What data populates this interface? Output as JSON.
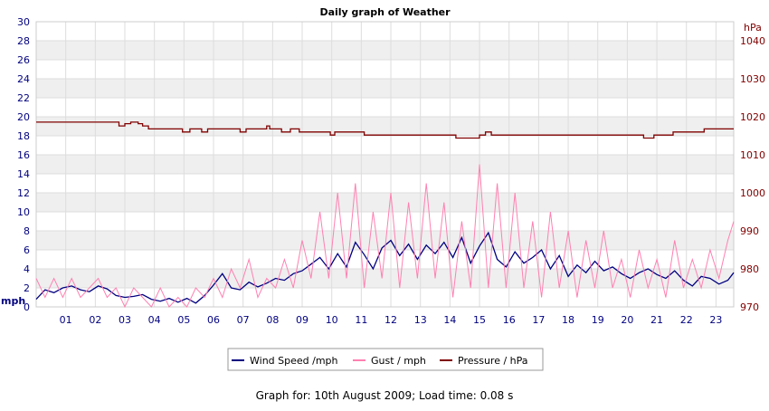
{
  "chart_data": {
    "type": "line",
    "title": "Daily graph of Weather",
    "ylabel_left": "mph",
    "ylabel_right": "hPa",
    "x_ticks": [
      "01",
      "02",
      "03",
      "04",
      "05",
      "06",
      "07",
      "08",
      "09",
      "10",
      "11",
      "12",
      "13",
      "14",
      "15",
      "16",
      "17",
      "18",
      "19",
      "20",
      "21",
      "22",
      "23"
    ],
    "xlim": [
      0,
      23.6
    ],
    "ylim_left": [
      0,
      30
    ],
    "y_ticks_left": [
      0,
      2,
      4,
      6,
      8,
      10,
      12,
      14,
      16,
      18,
      20,
      22,
      24,
      26,
      28,
      30
    ],
    "ylim_right": [
      970,
      1045
    ],
    "y_ticks_right": [
      970,
      980,
      990,
      1000,
      1010,
      1020,
      1030,
      1040
    ],
    "grid": true,
    "legend_position": "bottom",
    "series": [
      {
        "name": "Wind Speed /mph",
        "color": "#000080",
        "axis": "left",
        "x": [
          0,
          0.3,
          0.6,
          0.9,
          1.2,
          1.5,
          1.8,
          2.1,
          2.4,
          2.7,
          3.0,
          3.3,
          3.6,
          3.9,
          4.2,
          4.5,
          4.8,
          5.1,
          5.4,
          5.7,
          6.0,
          6.3,
          6.6,
          6.9,
          7.2,
          7.5,
          7.8,
          8.1,
          8.4,
          8.7,
          9.0,
          9.3,
          9.6,
          9.9,
          10.2,
          10.5,
          10.8,
          11.1,
          11.4,
          11.7,
          12.0,
          12.3,
          12.6,
          12.9,
          13.2,
          13.5,
          13.8,
          14.1,
          14.4,
          14.7,
          15.0,
          15.3,
          15.6,
          15.9,
          16.2,
          16.5,
          16.8,
          17.1,
          17.4,
          17.7,
          18.0,
          18.3,
          18.6,
          18.9,
          19.2,
          19.5,
          19.8,
          20.1,
          20.4,
          20.7,
          21.0,
          21.3,
          21.6,
          21.9,
          22.2,
          22.5,
          22.8,
          23.1,
          23.4,
          23.6
        ],
        "y": [
          0.8,
          1.8,
          1.5,
          2.0,
          2.2,
          1.8,
          1.6,
          2.2,
          1.9,
          1.2,
          1.0,
          1.1,
          1.3,
          0.8,
          0.6,
          0.9,
          0.5,
          0.9,
          0.4,
          1.2,
          2.3,
          3.5,
          2.0,
          1.8,
          2.6,
          2.1,
          2.5,
          3.0,
          2.8,
          3.5,
          3.8,
          4.5,
          5.2,
          4.0,
          5.6,
          4.2,
          6.8,
          5.5,
          4.0,
          6.2,
          7.0,
          5.4,
          6.6,
          5.0,
          6.5,
          5.6,
          6.8,
          5.2,
          7.3,
          4.6,
          6.4,
          7.8,
          5.0,
          4.2,
          5.8,
          4.6,
          5.2,
          6.0,
          4.0,
          5.4,
          3.2,
          4.4,
          3.6,
          4.8,
          3.8,
          4.2,
          3.5,
          3.0,
          3.6,
          4.0,
          3.4,
          3.0,
          3.8,
          2.8,
          2.2,
          3.2,
          3.0,
          2.4,
          2.8,
          3.6
        ]
      },
      {
        "name": "Gust / mph",
        "color": "#ff80b0",
        "axis": "left",
        "x": [
          0,
          0.3,
          0.6,
          0.9,
          1.2,
          1.5,
          1.8,
          2.1,
          2.4,
          2.7,
          3.0,
          3.3,
          3.6,
          3.9,
          4.2,
          4.5,
          4.8,
          5.1,
          5.4,
          5.7,
          6.0,
          6.3,
          6.6,
          6.9,
          7.2,
          7.5,
          7.8,
          8.1,
          8.4,
          8.7,
          9.0,
          9.3,
          9.6,
          9.9,
          10.2,
          10.5,
          10.8,
          11.1,
          11.4,
          11.7,
          12.0,
          12.3,
          12.6,
          12.9,
          13.2,
          13.5,
          13.8,
          14.1,
          14.4,
          14.7,
          15.0,
          15.3,
          15.6,
          15.9,
          16.2,
          16.5,
          16.8,
          17.1,
          17.4,
          17.7,
          18.0,
          18.3,
          18.6,
          18.9,
          19.2,
          19.5,
          19.8,
          20.1,
          20.4,
          20.7,
          21.0,
          21.3,
          21.6,
          21.9,
          22.2,
          22.5,
          22.8,
          23.1,
          23.4,
          23.6
        ],
        "y": [
          3.0,
          1.0,
          3.0,
          1.0,
          3.0,
          1.0,
          2.0,
          3.0,
          1.0,
          2.0,
          0.0,
          2.0,
          1.0,
          0.0,
          2.0,
          0.0,
          1.0,
          0.0,
          2.0,
          1.0,
          3.0,
          1.0,
          4.0,
          2.0,
          5.0,
          1.0,
          3.0,
          2.0,
          5.0,
          2.0,
          7.0,
          3.0,
          10.0,
          3.0,
          12.0,
          3.0,
          13.0,
          2.0,
          10.0,
          3.0,
          12.0,
          2.0,
          11.0,
          3.0,
          13.0,
          3.0,
          11.0,
          1.0,
          9.0,
          2.0,
          15.0,
          2.0,
          13.0,
          2.0,
          12.0,
          2.0,
          9.0,
          1.0,
          10.0,
          2.0,
          8.0,
          1.0,
          7.0,
          2.0,
          8.0,
          2.0,
          5.0,
          1.0,
          6.0,
          2.0,
          5.0,
          1.0,
          7.0,
          2.0,
          5.0,
          2.0,
          6.0,
          3.0,
          7.0,
          9.0
        ]
      },
      {
        "name": "Pressure / hPa",
        "color": "#800000",
        "axis": "right",
        "x": [
          0,
          0.5,
          1.0,
          1.5,
          2.0,
          2.5,
          2.75,
          2.8,
          2.9,
          3.0,
          3.2,
          3.45,
          3.6,
          3.8,
          4.0,
          4.5,
          4.95,
          5.2,
          5.5,
          5.6,
          5.8,
          6.0,
          6.5,
          6.8,
          6.9,
          7.1,
          7.5,
          7.8,
          7.9,
          8.0,
          8.3,
          8.6,
          8.9,
          9.3,
          9.6,
          9.8,
          9.95,
          10.1,
          10.3,
          10.6,
          10.9,
          11.1,
          11.3,
          11.6,
          12.0,
          13.0,
          14.0,
          14.2,
          14.8,
          15.0,
          15.2,
          15.4,
          16.0,
          17.0,
          18.0,
          19.0,
          20.0,
          20.4,
          20.55,
          20.7,
          20.9,
          21.0,
          21.5,
          21.55,
          21.7,
          22.0,
          22.5,
          22.6,
          23.0,
          23.6
        ],
        "y": [
          1018.6,
          1018.6,
          1018.6,
          1018.6,
          1018.6,
          1018.6,
          1018.6,
          1017.6,
          1017.6,
          1018.2,
          1018.6,
          1018.2,
          1017.6,
          1016.8,
          1016.8,
          1016.8,
          1016.0,
          1016.8,
          1016.8,
          1016.0,
          1016.8,
          1016.8,
          1016.8,
          1016.8,
          1016.0,
          1016.8,
          1016.8,
          1017.6,
          1016.8,
          1016.8,
          1016.0,
          1016.8,
          1016.0,
          1016.0,
          1016.0,
          1016.0,
          1015.2,
          1016.0,
          1016.0,
          1016.0,
          1016.0,
          1015.2,
          1015.2,
          1015.2,
          1015.2,
          1015.2,
          1015.2,
          1014.4,
          1014.4,
          1015.2,
          1016.0,
          1015.2,
          1015.2,
          1015.2,
          1015.2,
          1015.2,
          1015.2,
          1015.2,
          1014.4,
          1014.4,
          1015.2,
          1015.2,
          1015.2,
          1016.0,
          1016.0,
          1016.0,
          1016.0,
          1016.8,
          1016.8,
          1016.8
        ]
      }
    ]
  },
  "footer": {
    "text": "Graph for: 10th August 2009; Load time: 0.08 s"
  }
}
